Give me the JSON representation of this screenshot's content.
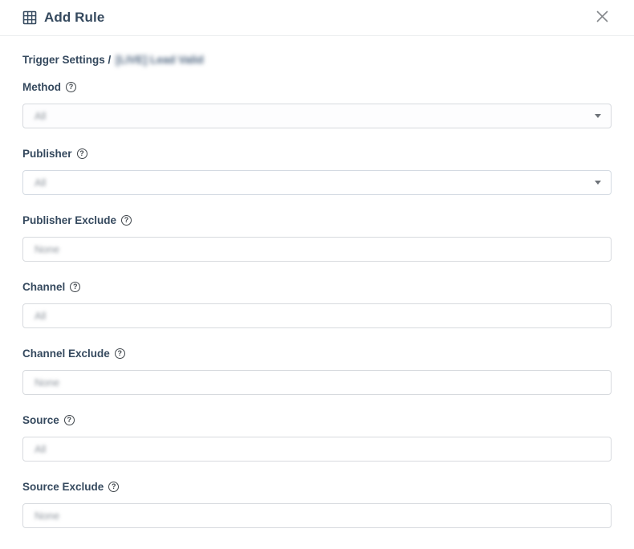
{
  "header": {
    "title": "Add Rule",
    "title_icon": "grid-icon",
    "close_icon": "close-icon"
  },
  "breadcrumb": {
    "prefix": "Trigger Settings /",
    "redacted_value": "[LIVE] Lead Valid"
  },
  "colors": {
    "label_text": "#35495e",
    "border": "#d7dade",
    "muted_value": "#8d949c"
  },
  "fields": [
    {
      "label": "Method",
      "type": "select",
      "value": "All",
      "help_icon": "?"
    },
    {
      "label": "Publisher",
      "type": "select",
      "value": "All",
      "help_icon": "?"
    },
    {
      "label": "Publisher Exclude",
      "type": "input",
      "value": "None",
      "help_icon": "?"
    },
    {
      "label": "Channel",
      "type": "input",
      "value": "All",
      "help_icon": "?"
    },
    {
      "label": "Channel Exclude",
      "type": "input",
      "value": "None",
      "help_icon": "?"
    },
    {
      "label": "Source",
      "type": "input",
      "value": "All",
      "help_icon": "?"
    },
    {
      "label": "Source Exclude",
      "type": "input",
      "value": "None",
      "help_icon": "?"
    }
  ]
}
